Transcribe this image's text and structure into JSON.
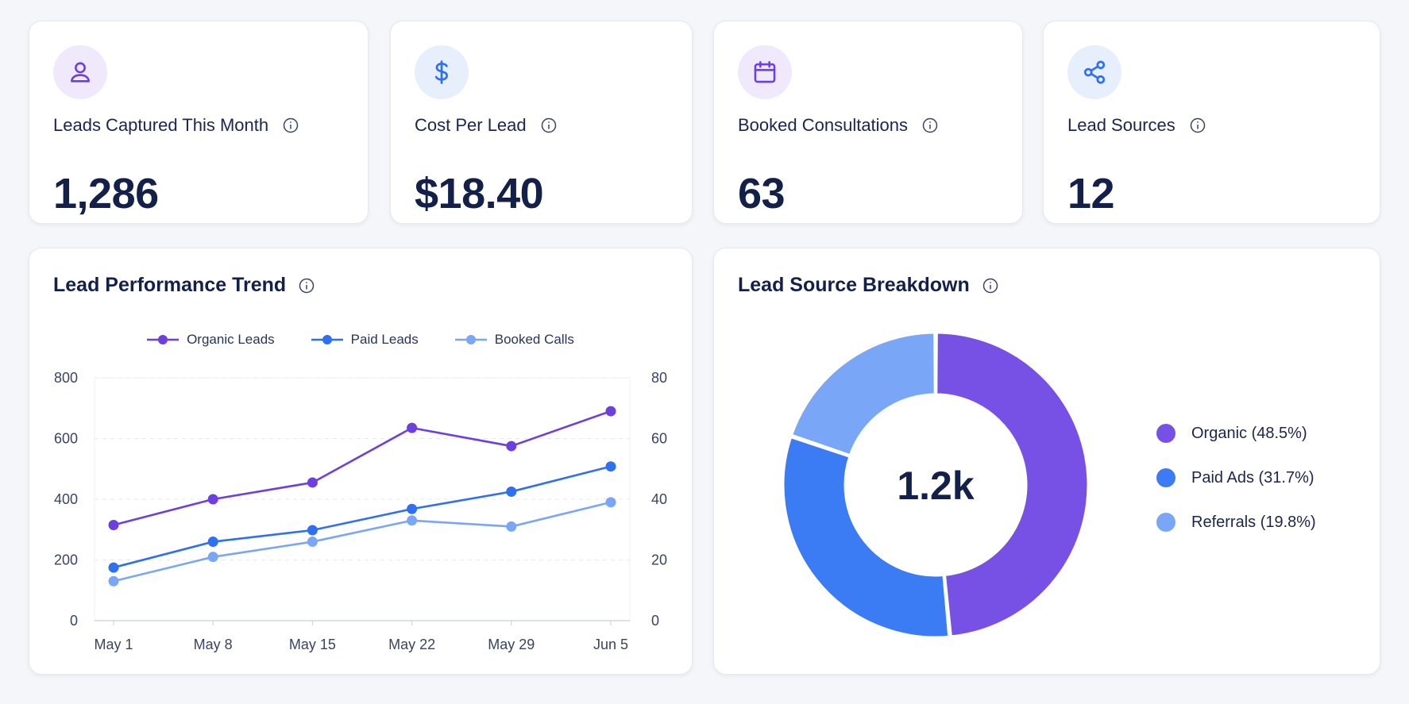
{
  "kpis": [
    {
      "label": "Leads Captured This Month",
      "value": "1,286",
      "icon": "user-icon",
      "icon_bg": "#efe9fb",
      "icon_color": "#6d3fe0"
    },
    {
      "label": "Cost Per Lead",
      "value": "$18.40",
      "icon": "dollar-icon",
      "icon_bg": "#e7eefc",
      "icon_color": "#2f6ff2"
    },
    {
      "label": "Booked Consultations",
      "value": "63",
      "icon": "calendar-icon",
      "icon_bg": "#efe9fb",
      "icon_color": "#6d3fe0"
    },
    {
      "label": "Lead Sources",
      "value": "12",
      "icon": "share-icon",
      "icon_bg": "#e7eefc",
      "icon_color": "#2f6ff2"
    }
  ],
  "trend": {
    "title": "Lead Performance Trend"
  },
  "breakdown": {
    "title": "Lead Source Breakdown",
    "center_label": "1.2k"
  },
  "chart_data": [
    {
      "type": "line",
      "title": "Lead Performance Trend",
      "x": [
        "May 1",
        "May 8",
        "May 15",
        "May 22",
        "May 29",
        "Jun 5"
      ],
      "y_left_ticks": [
        "0",
        "200",
        "400",
        "600",
        "800"
      ],
      "y_right_ticks": [
        "0",
        "20",
        "40",
        "60",
        "80"
      ],
      "ylim_left": [
        0,
        800
      ],
      "ylim_right": [
        0,
        80
      ],
      "grid": true,
      "legend_position": "top-center",
      "series": [
        {
          "name": "Organic Leads",
          "values": [
            315,
            400,
            455,
            635,
            575,
            690
          ],
          "axis": "left",
          "color": "#6d3fe0"
        },
        {
          "name": "Paid Leads",
          "values": [
            175,
            260,
            298,
            368,
            425,
            508
          ],
          "axis": "left",
          "color": "#2f6ff2"
        },
        {
          "name": "Booked Calls",
          "values": [
            13,
            21,
            26,
            33,
            31,
            39
          ],
          "axis": "right",
          "color": "#7aa6f7"
        }
      ]
    },
    {
      "type": "pie",
      "title": "Lead Source Breakdown",
      "center_label": "1.2k",
      "legend_position": "right",
      "slices": [
        {
          "label": "Organic (48.5%)",
          "value": 48.5,
          "color": "#7750e6"
        },
        {
          "label": "Paid Ads (31.7%)",
          "value": 31.7,
          "color": "#3b7bf4"
        },
        {
          "label": "Referrals (19.8%)",
          "value": 19.8,
          "color": "#7aa6f7"
        }
      ]
    }
  ]
}
